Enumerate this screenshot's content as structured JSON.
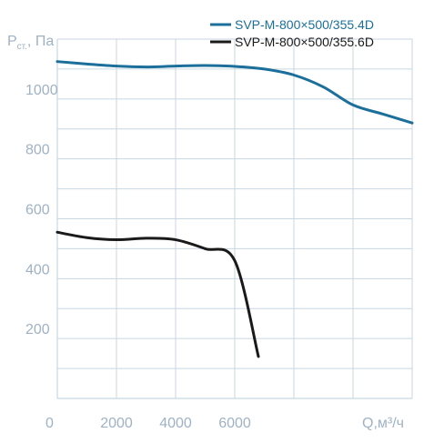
{
  "chart_data": {
    "type": "line",
    "title": "",
    "ylabel": "P",
    "ylabel_sub": "ст.",
    "ylabel_unit": ", Па",
    "xlabel": "Q,м³/ч",
    "xlim": [
      0,
      12000
    ],
    "ylim": [
      0,
      1200
    ],
    "x_ticks": [
      "0",
      "2000",
      "4000",
      "6000"
    ],
    "y_ticks": [
      "200",
      "400",
      "600",
      "800",
      "1000"
    ],
    "grid": true,
    "legend_position": "top-right",
    "series": [
      {
        "name": "SVP-M-800×500/355.4D",
        "color": "#1b6f9a",
        "x": [
          0,
          1000,
          2000,
          3000,
          4000,
          5000,
          6000,
          7000,
          8000,
          9000,
          10000,
          11000,
          12000
        ],
        "y": [
          1125,
          1117,
          1110,
          1107,
          1110,
          1112,
          1109,
          1100,
          1080,
          1040,
          980,
          950,
          920
        ]
      },
      {
        "name": "SVP-M-800×500/355.6D",
        "color": "#1a1a1a",
        "x": [
          0,
          1000,
          2000,
          3000,
          4000,
          5000,
          6000,
          6800
        ],
        "y": [
          555,
          537,
          530,
          535,
          530,
          500,
          460,
          140
        ]
      }
    ]
  }
}
